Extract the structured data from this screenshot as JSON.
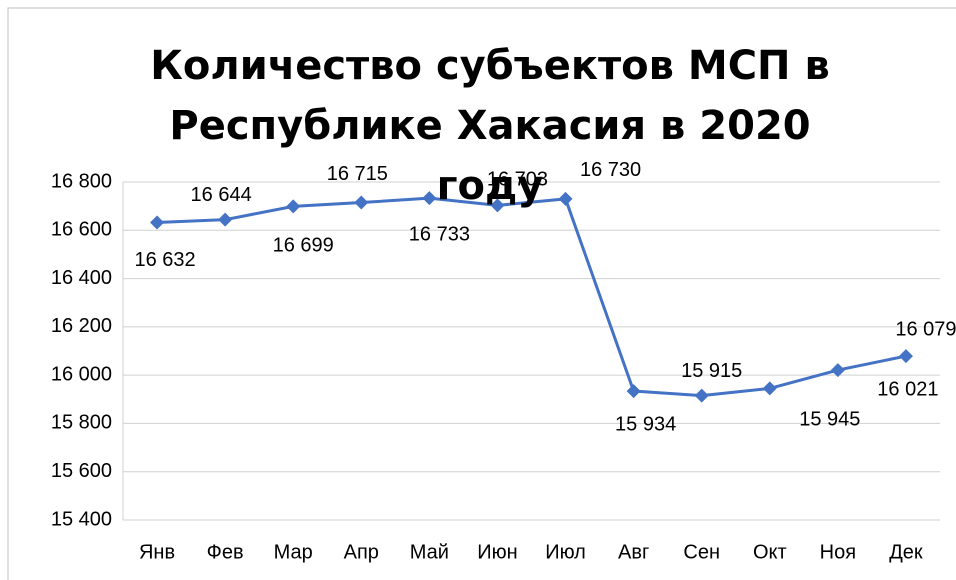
{
  "chart_data": {
    "type": "line",
    "title": "Количество субъектов МСП в Республике Хакасия в 2020 году",
    "categories": [
      "Янв",
      "Фев",
      "Мар",
      "Апр",
      "Май",
      "Июн",
      "Июл",
      "Авг",
      "Сен",
      "Окт",
      "Ноя",
      "Дек"
    ],
    "series": [
      {
        "color": "#4472c4",
        "values": [
          16632,
          16644,
          16699,
          16715,
          16733,
          16703,
          16730,
          15934,
          15915,
          15945,
          16021,
          16079
        ],
        "value_labels": [
          "16 632",
          "16 644",
          "16 699",
          "16 715",
          "16 733",
          "16 703",
          "16 730",
          "15 934",
          "15 915",
          "15 945",
          "16 021",
          "16 079"
        ]
      }
    ],
    "ylim": [
      15400,
      16800
    ],
    "yticks": [
      {
        "value": 15400,
        "label": "15 400"
      },
      {
        "value": 15600,
        "label": "15 600"
      },
      {
        "value": 15800,
        "label": "15 800"
      },
      {
        "value": 16000,
        "label": "16 000"
      },
      {
        "value": 16200,
        "label": "16 200"
      },
      {
        "value": 16400,
        "label": "16 400"
      },
      {
        "value": 16600,
        "label": "16 600"
      },
      {
        "value": 16800,
        "label": "16 800"
      }
    ],
    "grid": true
  }
}
